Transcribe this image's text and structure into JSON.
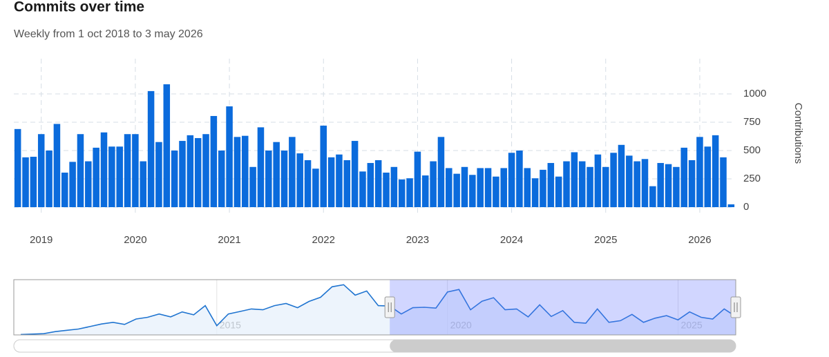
{
  "chart_data": {
    "type": "bar",
    "title": "Commits over time",
    "subtitle": "Weekly from 1 oct 2018 to 3 may 2026",
    "y_label": "Contributions",
    "categories": [
      null,
      null,
      null,
      null,
      null,
      null,
      null,
      null,
      null,
      null,
      null,
      null,
      null,
      null,
      null,
      null,
      null,
      null,
      null,
      null,
      null,
      null,
      null,
      null,
      null,
      null,
      null,
      null,
      null,
      null,
      null,
      null,
      null,
      null,
      null,
      null,
      null,
      null,
      null,
      null,
      null,
      null,
      null,
      null,
      null,
      null,
      null,
      null,
      null,
      null,
      null,
      null,
      null,
      null,
      null,
      null,
      null,
      null,
      null,
      null,
      null,
      null,
      null,
      null,
      null,
      null,
      null,
      null,
      null,
      null,
      null,
      null,
      null,
      null,
      null,
      null,
      null,
      null,
      null,
      null,
      null,
      null,
      null,
      null,
      null,
      null,
      null,
      null,
      null,
      null,
      null,
      null
    ],
    "values": [
      690,
      440,
      445,
      645,
      500,
      735,
      305,
      400,
      645,
      405,
      525,
      660,
      535,
      535,
      645,
      645,
      405,
      1025,
      575,
      1085,
      500,
      585,
      635,
      610,
      645,
      805,
      500,
      890,
      620,
      630,
      355,
      705,
      500,
      575,
      500,
      620,
      475,
      415,
      340,
      720,
      440,
      465,
      415,
      585,
      315,
      390,
      415,
      305,
      355,
      245,
      255,
      490,
      280,
      405,
      620,
      345,
      295,
      355,
      285,
      345,
      345,
      270,
      345,
      480,
      500,
      345,
      255,
      330,
      390,
      270,
      405,
      485,
      405,
      355,
      465,
      355,
      480,
      550,
      455,
      405,
      425,
      185,
      390,
      380,
      355,
      525,
      415,
      620,
      535,
      635,
      440,
      25
    ],
    "color": "#0b6bdc",
    "ylim": [
      0,
      1250
    ],
    "yticks": [
      0,
      250,
      500,
      750,
      1000
    ],
    "grid": true,
    "xticks": [
      {
        "value": 3,
        "label": "2019"
      },
      {
        "value": 15,
        "label": "2020"
      },
      {
        "value": 27,
        "label": "2021"
      },
      {
        "value": 39,
        "label": "2022"
      },
      {
        "value": 51,
        "label": "2023"
      },
      {
        "value": 63,
        "label": "2024"
      },
      {
        "value": 75,
        "label": "2025"
      },
      {
        "value": 87,
        "label": "2026"
      }
    ],
    "navigator": {
      "type": "line",
      "color": "#1f74d0",
      "x": [
        2010.75,
        2011,
        2011.25,
        2011.5,
        2011.75,
        2012,
        2012.25,
        2012.5,
        2012.75,
        2013,
        2013.25,
        2013.5,
        2013.75,
        2014,
        2014.25,
        2014.5,
        2014.75,
        2015,
        2015.25,
        2015.5,
        2015.75,
        2016,
        2016.25,
        2016.5,
        2016.75,
        2017,
        2017.25,
        2017.5,
        2017.75,
        2018,
        2018.25,
        2018.5,
        2018.75,
        2019,
        2019.25,
        2019.5,
        2019.75,
        2020,
        2020.25,
        2020.5,
        2020.75,
        2021,
        2021.25,
        2021.5,
        2021.75,
        2022,
        2022.25,
        2022.5,
        2022.75,
        2023,
        2023.25,
        2023.5,
        2023.75,
        2024,
        2024.25,
        2024.5,
        2024.75,
        2025,
        2025.25,
        2025.5,
        2025.75,
        2026,
        2026.25
      ],
      "values": [
        10,
        20,
        30,
        80,
        110,
        140,
        200,
        260,
        300,
        250,
        380,
        420,
        500,
        430,
        550,
        480,
        700,
        220,
        500,
        560,
        620,
        600,
        700,
        750,
        650,
        800,
        900,
        1150,
        1200,
        950,
        1050,
        700,
        690,
        500,
        650,
        660,
        640,
        1025,
        1085,
        600,
        805,
        890,
        600,
        620,
        430,
        720,
        440,
        580,
        300,
        280,
        620,
        300,
        340,
        490,
        300,
        400,
        460,
        360,
        550,
        420,
        380,
        620,
        440
      ],
      "xlim": [
        2010.6,
        2026.25
      ],
      "xticks": [
        2015,
        2020,
        2025
      ],
      "range": [
        2018.75,
        2026.25
      ]
    }
  }
}
